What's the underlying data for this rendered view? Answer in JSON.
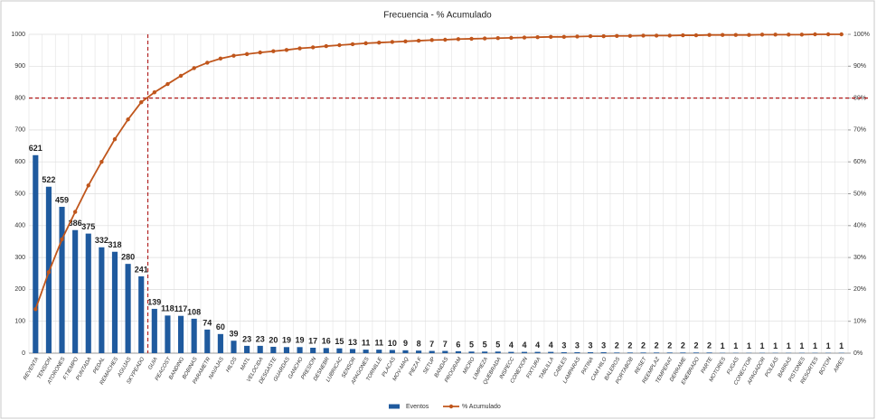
{
  "chart_data": {
    "type": "combo",
    "title": "Frecuencia - % Acumulado",
    "categories": [
      "REVENTA",
      "TENSION",
      "ATORONES",
      "F.TIEMPO",
      "PUNTADA",
      "PEDAL",
      "REMACHES",
      "AGUJAS",
      "SKYPEADO",
      "GUIA",
      "PEACOST",
      "BANDING",
      "BOBINAS",
      "PARAMETR",
      "NAVAJAS",
      "HILOS",
      "MATL",
      "VELOCIDA",
      "DESGASTE",
      "GUARDAS",
      "GANCHO",
      "PRESION",
      "DESNEBR",
      "LUBRICAC",
      "SENSOR",
      "APAGONES",
      "TORNILLE",
      "PLACAS",
      "MOV-MAQ",
      "PIEZA F",
      "SETUP",
      "BANDAS",
      "PROGRAM",
      "MICRO",
      "LIMPIEZA",
      "QUEBRADA",
      "INSPECC",
      "CONEXION",
      "FIXTURA",
      "TABLILLA",
      "CABLES",
      "LAMPARAS",
      "PATINA",
      "CAM HILO",
      "BALEROS",
      "PORTABOB",
      "RESET",
      "REEMPLAZ",
      "TEMPERAT",
      "DERRAME",
      "ENEBRADO",
      "PARTE",
      "MOTORES",
      "FUGAS",
      "CONECTOR",
      "APAGADOR",
      "POLEAS",
      "BARRAS",
      "PISTONES",
      "RESORTES",
      "BOTON",
      "AIRES"
    ],
    "series": [
      {
        "name": "Eventos",
        "type": "bar",
        "color": "#1f5a9e",
        "values": [
          621,
          522,
          459,
          386,
          375,
          332,
          318,
          280,
          241,
          139,
          118,
          117,
          108,
          74,
          60,
          39,
          23,
          23,
          20,
          19,
          19,
          17,
          16,
          15,
          13,
          11,
          11,
          10,
          9,
          8,
          7,
          7,
          6,
          5,
          5,
          5,
          4,
          4,
          4,
          4,
          3,
          3,
          3,
          3,
          2,
          2,
          2,
          2,
          2,
          2,
          2,
          2,
          1,
          1,
          1,
          1,
          1,
          1,
          1,
          1,
          1,
          1
        ]
      },
      {
        "name": "% Acumulado",
        "type": "line",
        "axis": "y2",
        "color": "#c0561c",
        "values": [
          13.8,
          25.4,
          35.7,
          44.3,
          52.6,
          60.0,
          67.1,
          73.3,
          78.7,
          81.8,
          84.4,
          87.0,
          89.4,
          91.1,
          92.4,
          93.3,
          93.8,
          94.3,
          94.7,
          95.1,
          95.6,
          95.9,
          96.3,
          96.6,
          96.9,
          97.2,
          97.4,
          97.6,
          97.8,
          98.0,
          98.2,
          98.3,
          98.5,
          98.6,
          98.7,
          98.8,
          98.9,
          99.0,
          99.1,
          99.2,
          99.2,
          99.3,
          99.4,
          99.4,
          99.5,
          99.5,
          99.6,
          99.6,
          99.6,
          99.7,
          99.7,
          99.8,
          99.8,
          99.8,
          99.8,
          99.9,
          99.9,
          99.9,
          99.9,
          100.0,
          100.0,
          100.0
        ]
      }
    ],
    "ylim": [
      0,
      1000
    ],
    "yticks": [
      0,
      100,
      200,
      300,
      400,
      500,
      600,
      700,
      800,
      900,
      1000
    ],
    "y2lim": [
      0,
      100
    ],
    "y2ticks": [
      {
        "value": 0,
        "label": "0%"
      },
      {
        "value": 10,
        "label": "10%"
      },
      {
        "value": 20,
        "label": "20%"
      },
      {
        "value": 30,
        "label": "30%"
      },
      {
        "value": 40,
        "label": "40%"
      },
      {
        "value": 50,
        "label": "50%"
      },
      {
        "value": 60,
        "label": "60%"
      },
      {
        "value": 70,
        "label": "70%"
      },
      {
        "value": 80,
        "label": "80%"
      },
      {
        "value": 90,
        "label": "90%"
      },
      {
        "value": 100,
        "label": "100%"
      }
    ],
    "threshold": 80,
    "grid": true,
    "legend": "bottom"
  }
}
